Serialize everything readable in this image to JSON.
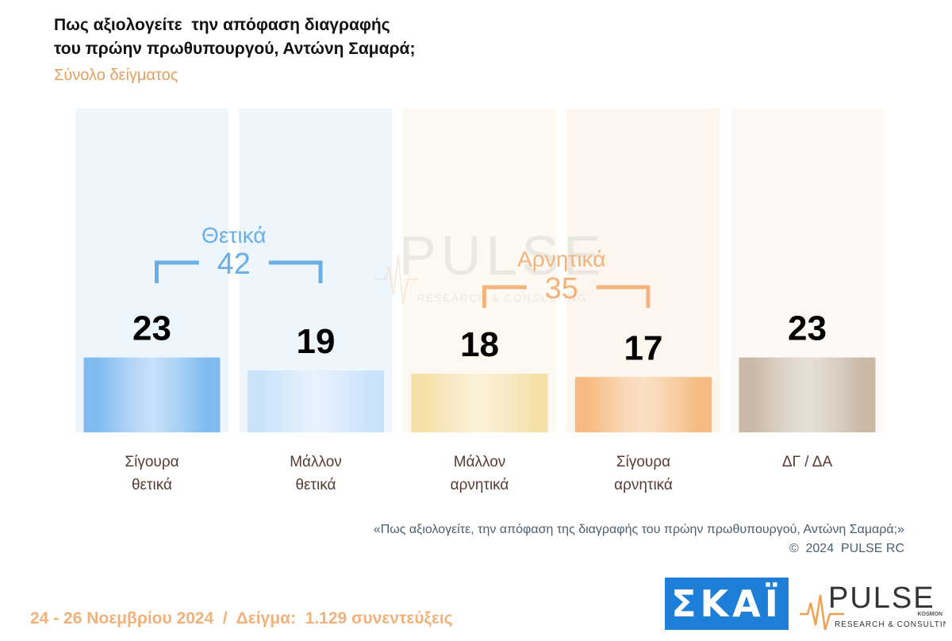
{
  "header": {
    "title_line1": "Πως αξιολογείτε  την απόφαση διαγραφής",
    "title_line2": "του πρώην πρωθυπουργού, Αντώνη Σαμαρά;",
    "subtitle": "Σύνολο δείγματος"
  },
  "chart_data": {
    "type": "bar",
    "categories": [
      "Σίγουρα θετικά",
      "Μάλλον θετικά",
      "Μάλλον αρνητικά",
      "Σίγουρα αρνητικά",
      "ΔΓ / ΔΑ"
    ],
    "category_lines": [
      [
        "Σίγουρα",
        "θετικά"
      ],
      [
        "Μάλλον",
        "θετικά"
      ],
      [
        "Μάλλον",
        "αρνητικά"
      ],
      [
        "Σίγουρα",
        "αρνητικά"
      ],
      [
        "ΔΓ / ΔΑ"
      ]
    ],
    "values": [
      23,
      19,
      18,
      17,
      23
    ],
    "colors": [
      "#7fbaf0",
      "#c9e2fa",
      "#f5e0a8",
      "#f5bb80",
      "#c9b9a6"
    ],
    "column_bg": [
      "#eef6fd",
      "#eef6fd",
      "#fdf9f2",
      "#fdf6ee",
      "#fbf8f5"
    ],
    "groups": [
      {
        "label": "Θετικά",
        "total": "42",
        "span": [
          0,
          1
        ],
        "color": "#6aaee6"
      },
      {
        "label": "Αρνητικά",
        "total": "35",
        "span": [
          2,
          3
        ],
        "color": "#f2b47c"
      }
    ],
    "title": "Πως αξιολογείτε  την απόφαση διαγραφής του πρώην πρωθυπουργού, Αντώνη Σαμαρά;",
    "xlabel": "",
    "ylabel": "",
    "grid": false,
    "legend": "none"
  },
  "watermark": {
    "brand": "PULSE",
    "tagline": "RESEARCH & CONSULTING"
  },
  "footnote": "«Πως αξιολογείτε, την απόφαση της διαγραφής του πρώην πρωθυπουργού, Αντώνη Σαμαρά;»",
  "copyright": "©  2024  PULSE RC",
  "footer": "24 - 26 Νοεμβρίου 2024  /  Δείγμα:  1.129 συνεντεύξεις",
  "logos": {
    "skai": "ΣΚΑΪ",
    "pulse_brand": "PULSE",
    "pulse_sub": "KOSMON",
    "pulse_tagline": "RESEARCH & CONSULTING"
  },
  "colors": {
    "subtitle": "#e0a060",
    "footer": "#f0b27a",
    "skai_blue": "#1e7fd8",
    "pulse_orange": "#f0a050"
  }
}
